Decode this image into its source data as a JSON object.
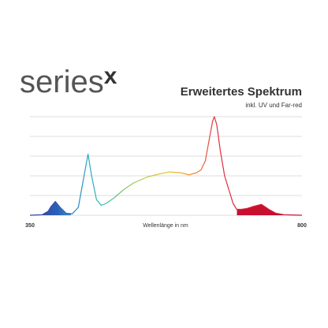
{
  "logo": {
    "text": "series",
    "mark": "x"
  },
  "chart_data": {
    "type": "line",
    "title": "Erweitertes Spektrum",
    "subtitle": "inkl. UV und Far-red",
    "x_label": "Wellenlänge in nm",
    "xlim": [
      350,
      800
    ],
    "xticks": [
      350,
      800
    ],
    "ylim": [
      0,
      100
    ],
    "yticks": [
      0,
      20,
      40,
      60,
      80,
      100
    ],
    "grid": true,
    "x": [
      350,
      370,
      380,
      385,
      392,
      400,
      410,
      420,
      430,
      438,
      446,
      452,
      460,
      468,
      476,
      490,
      505,
      522,
      545,
      565,
      581,
      600,
      613,
      625,
      633,
      640,
      646,
      652,
      655,
      659,
      665,
      672,
      679,
      686,
      692,
      700,
      710,
      720,
      733,
      745,
      757,
      770,
      800
    ],
    "values": [
      0,
      0.5,
      4,
      9,
      14,
      8,
      2,
      1.5,
      8,
      35,
      62,
      40,
      16,
      10,
      12,
      18,
      26,
      33,
      39,
      42,
      44,
      43,
      41,
      43,
      46,
      55,
      75,
      95,
      100,
      92,
      65,
      40,
      26,
      12,
      6,
      6,
      7,
      9,
      11,
      6,
      2,
      0.5,
      0
    ]
  }
}
